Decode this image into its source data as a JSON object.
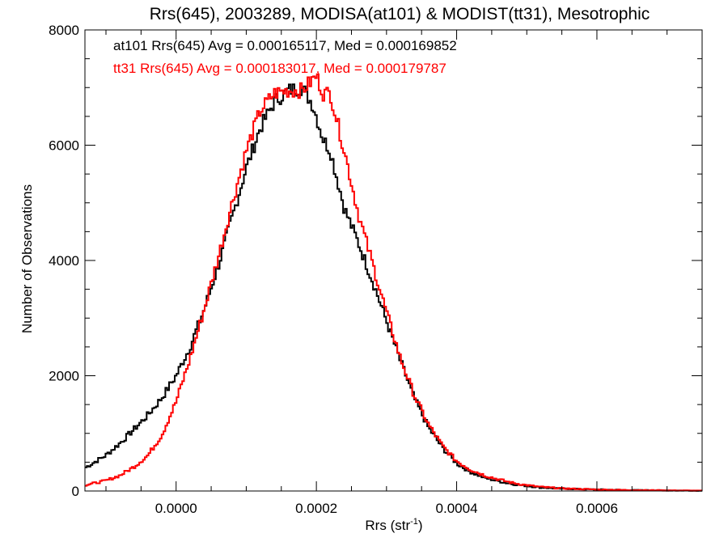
{
  "chart_data": {
    "type": "line",
    "style": "step-histogram",
    "title": "Rrs(645), 2003289, MODISA(at101) & MODIST(tt31), Mesotrophic",
    "xlabel": "Rrs (str",
    "xlabel_sup": "-1",
    "xlabel_end": ")",
    "ylabel": "Number of Observations",
    "xlim": [
      -0.00013,
      0.00075
    ],
    "ylim": [
      0,
      8000
    ],
    "x_ticks": [
      0.0,
      0.0002,
      0.0004,
      0.0006
    ],
    "x_tick_labels": [
      "0.0000",
      "0.0002",
      "0.0004",
      "0.0006"
    ],
    "y_ticks": [
      0,
      2000,
      4000,
      6000,
      8000
    ],
    "y_tick_labels": [
      "0",
      "2000",
      "4000",
      "6000",
      "8000"
    ],
    "annotations": [
      {
        "text": "at101 Rrs(645) Avg = 0.000165117, Med = 0.000169852",
        "color": "#000000"
      },
      {
        "text": "tt31 Rrs(645) Avg = 0.000183017, Med = 0.000179787",
        "color": "#ff0000"
      }
    ],
    "series": [
      {
        "color": "#000000",
        "x": [
          -0.00013,
          -0.0001,
          -8e-05,
          -6e-05,
          -4e-05,
          -2e-05,
          0.0,
          2e-05,
          4e-05,
          6e-05,
          8e-05,
          0.0001,
          0.00012,
          0.00014,
          0.00016,
          0.00018,
          0.000195,
          0.00021,
          0.00022,
          0.00024,
          0.00026,
          0.00028,
          0.0003,
          0.00032,
          0.00034,
          0.00036,
          0.00038,
          0.0004,
          0.00042,
          0.00044,
          0.00046,
          0.00048,
          0.0005,
          0.00052,
          0.00055,
          0.0006,
          0.00065,
          0.0007,
          0.00075
        ],
        "y": [
          400,
          620,
          830,
          1070,
          1320,
          1620,
          2000,
          2500,
          3150,
          3900,
          4750,
          5600,
          6300,
          6750,
          6950,
          7000,
          6700,
          6100,
          5900,
          4900,
          4300,
          3650,
          2950,
          2250,
          1600,
          1100,
          750,
          480,
          330,
          230,
          170,
          120,
          90,
          60,
          40,
          25,
          15,
          10,
          5
        ]
      },
      {
        "color": "#ff0000",
        "x": [
          -0.00013,
          -0.0001,
          -8e-05,
          -6e-05,
          -4e-05,
          -2e-05,
          0.0,
          2e-05,
          4e-05,
          6e-05,
          8e-05,
          0.0001,
          0.00012,
          0.00014,
          0.00016,
          0.00018,
          0.0002,
          0.00021,
          0.00022,
          0.00024,
          0.00026,
          0.00028,
          0.0003,
          0.00032,
          0.00034,
          0.00036,
          0.00038,
          0.0004,
          0.00042,
          0.00044,
          0.00046,
          0.00048,
          0.0005,
          0.00052,
          0.00055,
          0.0006,
          0.00065,
          0.0007,
          0.00075
        ],
        "y": [
          100,
          180,
          270,
          420,
          620,
          980,
          1550,
          2300,
          3150,
          4050,
          5000,
          5900,
          6600,
          6900,
          6950,
          6950,
          7200,
          6900,
          6900,
          5900,
          4800,
          3950,
          3100,
          2300,
          1650,
          1150,
          780,
          520,
          370,
          270,
          200,
          140,
          100,
          70,
          45,
          25,
          15,
          10,
          5
        ]
      }
    ]
  }
}
